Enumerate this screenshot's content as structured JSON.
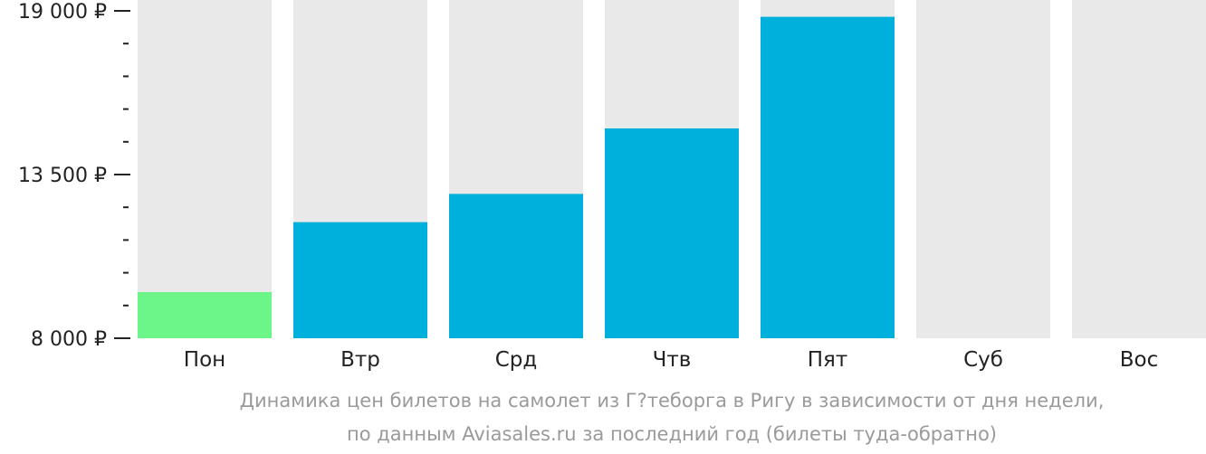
{
  "chart_data": {
    "type": "bar",
    "categories": [
      "Пон",
      "Втр",
      "Срд",
      "Чтв",
      "Пят",
      "Суб",
      "Вос"
    ],
    "values": [
      9550,
      11900,
      12850,
      15050,
      18800,
      null,
      null
    ],
    "ylim": [
      8000,
      19000
    ],
    "yticks": [
      {
        "value": 19000,
        "label": "19 000 ₽"
      },
      {
        "value": 13500,
        "label": "13 500 ₽"
      },
      {
        "value": 8000,
        "label": "8 000 ₽"
      }
    ],
    "minor_tick_step": 1100,
    "colors": {
      "background_bar": "#e9e9e9",
      "bar": "#00b0dc",
      "lowest_bar": "#6cf589",
      "tick": "#222222"
    },
    "highlight_index": 0
  },
  "caption": {
    "line1": "Динамика цен билетов на самолет из Г?теборга в Ригу в зависимости от дня недели,",
    "line2": "по данным Aviasales.ru за последний год (билеты туда-обратно)"
  }
}
